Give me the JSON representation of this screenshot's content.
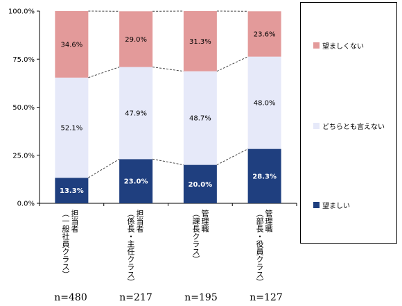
{
  "chart_data": {
    "type": "bar",
    "stacked": true,
    "percent": true,
    "categories": [
      {
        "line1": "担当者",
        "line2": "（一般社員クラス）",
        "n": "n=480"
      },
      {
        "line1": "担当者",
        "line2": "（係長・主任クラス）",
        "n": "n=217"
      },
      {
        "line1": "管理職",
        "line2": "（課長クラス）",
        "n": "n=195"
      },
      {
        "line1": "管理職",
        "line2": "（部長・役員クラス）",
        "n": "n=127"
      }
    ],
    "series": [
      {
        "name": "望ましい",
        "color": "#1f3f7f",
        "text_color": "#ffffff",
        "values": [
          13.3,
          23.0,
          20.0,
          28.3
        ],
        "labels": [
          "13.3%",
          "23.0%",
          "20.0%",
          "28.3%"
        ]
      },
      {
        "name": "どちらとも言えない",
        "color": "#e6e9f9",
        "text_color": "#000000",
        "values": [
          52.1,
          47.9,
          48.7,
          48.0
        ],
        "labels": [
          "52.1%",
          "47.9%",
          "48.7%",
          "48.0%"
        ]
      },
      {
        "name": "望ましくない",
        "color": "#e39a9a",
        "text_color": "#000000",
        "values": [
          34.6,
          29.0,
          31.3,
          23.6
        ],
        "labels": [
          "34.6%",
          "29.0%",
          "31.3%",
          "23.6%"
        ]
      }
    ],
    "yticks": [
      "0.0%",
      "25.0%",
      "50.0%",
      "75.0%",
      "100.0%"
    ],
    "ylim": [
      0,
      100
    ],
    "legend_position": "right"
  }
}
